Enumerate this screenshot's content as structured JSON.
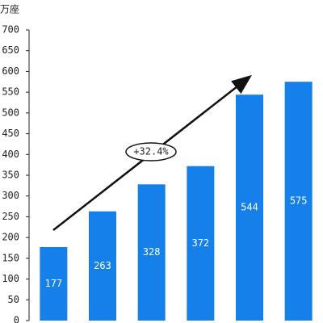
{
  "chart_data": {
    "type": "bar",
    "y_label": "万座",
    "categories": [
      null,
      null,
      null,
      null,
      null,
      null
    ],
    "values": [
      177,
      263,
      328,
      372,
      544,
      575
    ],
    "color": "#1580ea",
    "ylim": [
      0,
      700
    ],
    "yticks": [
      0,
      50,
      100,
      150,
      200,
      250,
      300,
      350,
      400,
      450,
      500,
      550,
      600,
      650,
      700
    ],
    "annotation": "+32.4%"
  }
}
